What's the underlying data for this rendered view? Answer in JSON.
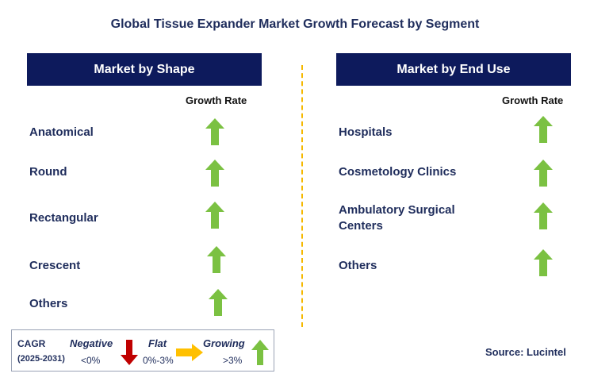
{
  "title": "Global Tissue Expander Market Growth Forecast by Segment",
  "colors": {
    "header_bg": "#0d1a5c",
    "text": "#1f2d5c",
    "growing": "#7bc142",
    "negative": "#c00000",
    "flat": "#ffc000",
    "divider": "#f5b800"
  },
  "left_panel": {
    "header": "Market by Shape",
    "column_header": "Growth Rate",
    "rows": [
      {
        "label": "Anatomical",
        "trend": "growing"
      },
      {
        "label": "Round",
        "trend": "growing"
      },
      {
        "label": "Rectangular",
        "trend": "growing"
      },
      {
        "label": "Crescent",
        "trend": "growing"
      },
      {
        "label": "Others",
        "trend": "growing"
      }
    ]
  },
  "right_panel": {
    "header": "Market by End Use",
    "column_header": "Growth Rate",
    "rows": [
      {
        "label": "Hospitals",
        "trend": "growing"
      },
      {
        "label": "Cosmetology Clinics",
        "trend": "growing"
      },
      {
        "label_line1": "Ambulatory Surgical",
        "label_line2": "Centers",
        "trend": "growing"
      },
      {
        "label": "Others",
        "trend": "growing"
      }
    ]
  },
  "legend": {
    "cagr": "CAGR",
    "period": "(2025-2031)",
    "negative": {
      "label": "Negative",
      "range": "<0%",
      "icon": "down-arrow-icon"
    },
    "flat": {
      "label": "Flat",
      "range": "0%-3%",
      "icon": "right-arrow-icon"
    },
    "growing": {
      "label": "Growing",
      "range": ">3%",
      "icon": "up-arrow-icon"
    }
  },
  "source": "Source: Lucintel"
}
